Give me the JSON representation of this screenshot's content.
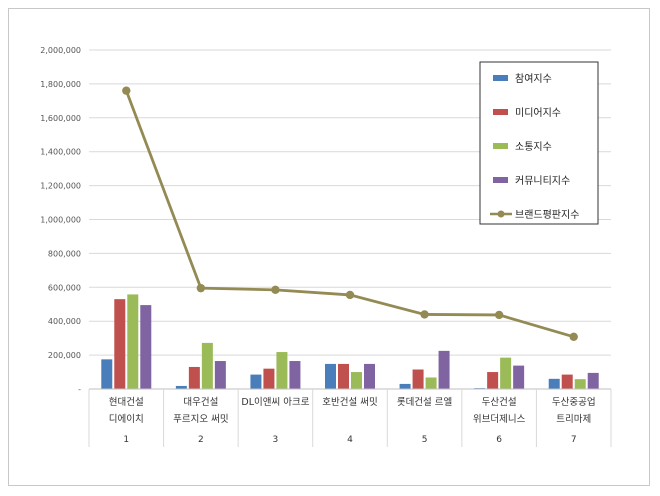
{
  "chart_data": {
    "type": "bar",
    "title": "",
    "xlabel": "",
    "ylabel": "",
    "ylim": [
      0,
      2000000
    ],
    "y_ticks": [
      "-",
      "200,000",
      "400,000",
      "600,000",
      "800,000",
      "1,000,000",
      "1,200,000",
      "1,400,000",
      "1,600,000",
      "1,800,000",
      "2,000,000"
    ],
    "categories": [
      {
        "index": "1",
        "lines": [
          "현대건설",
          "디에이치"
        ]
      },
      {
        "index": "2",
        "lines": [
          "대우건설",
          "푸르지오 써밋"
        ]
      },
      {
        "index": "3",
        "lines": [
          "DL이앤씨 아크로"
        ]
      },
      {
        "index": "4",
        "lines": [
          "호반건설 써밋"
        ]
      },
      {
        "index": "5",
        "lines": [
          "롯데건설 르엘"
        ]
      },
      {
        "index": "6",
        "lines": [
          "두산건설",
          "위브더제니스"
        ]
      },
      {
        "index": "7",
        "lines": [
          "두산중공업",
          "트리마제"
        ]
      }
    ],
    "series": [
      {
        "name": "참여지수",
        "color": "#4a7ebb",
        "kind": "bar",
        "values": [
          175000,
          18000,
          85000,
          148000,
          30000,
          5000,
          60000
        ]
      },
      {
        "name": "미디어지수",
        "color": "#c0504d",
        "kind": "bar",
        "values": [
          530000,
          130000,
          120000,
          148000,
          115000,
          100000,
          85000
        ]
      },
      {
        "name": "소통지수",
        "color": "#9bbb59",
        "kind": "bar",
        "values": [
          558000,
          272000,
          218000,
          100000,
          68000,
          185000,
          58000
        ]
      },
      {
        "name": "커뮤니티지수",
        "color": "#8064a2",
        "kind": "bar",
        "values": [
          495000,
          165000,
          165000,
          148000,
          225000,
          138000,
          95000
        ]
      },
      {
        "name": "브랜드평판지수",
        "color": "#948a54",
        "kind": "line",
        "values": [
          1760000,
          595000,
          585000,
          555000,
          440000,
          437000,
          308000
        ]
      }
    ],
    "grid": true,
    "legend_position": "top-right"
  }
}
